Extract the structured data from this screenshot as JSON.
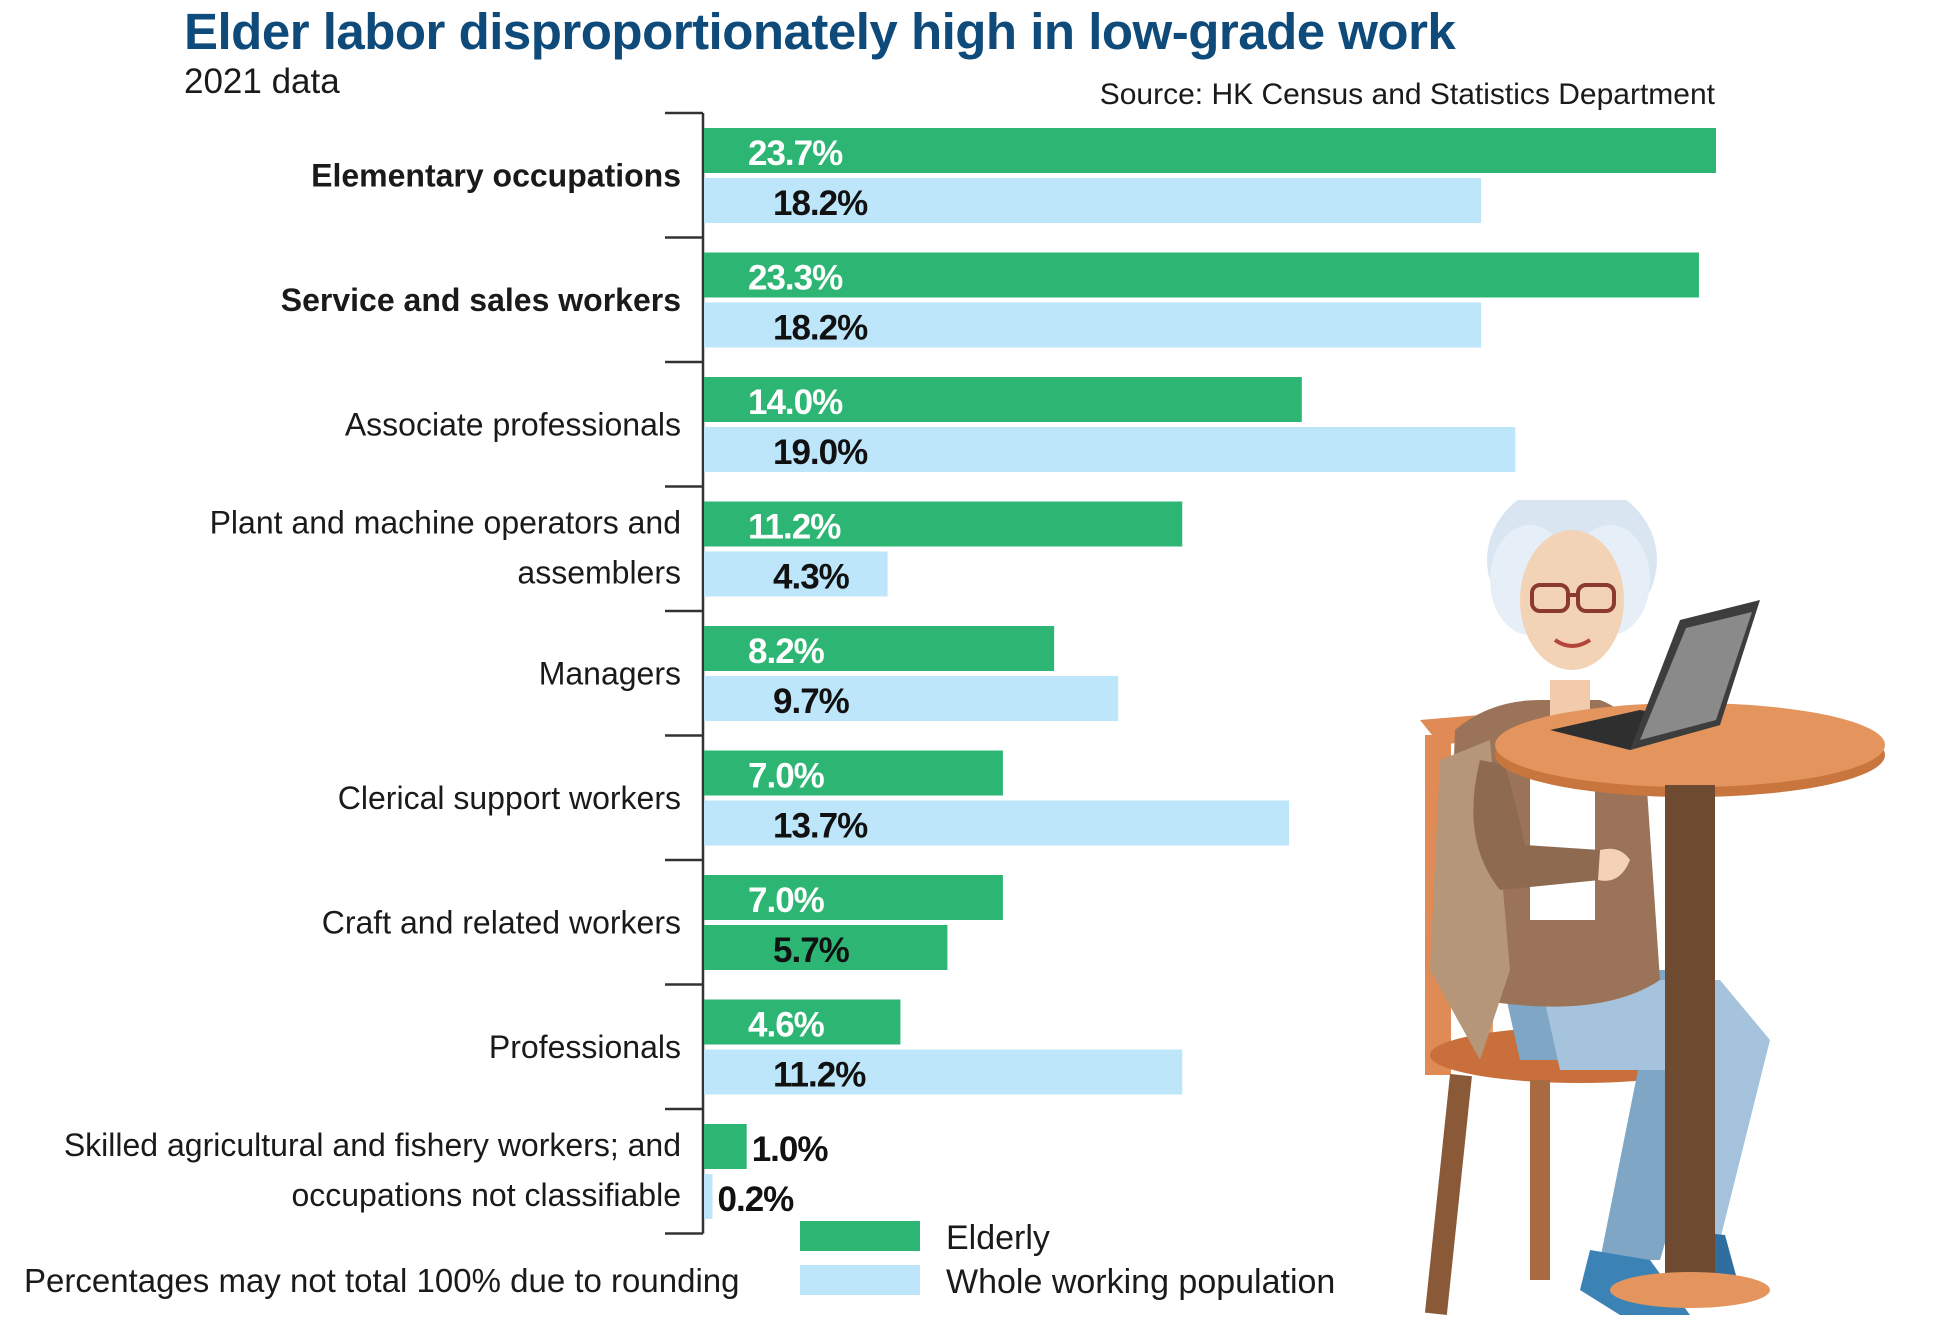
{
  "title": "Elder labor disproportionately high in low-grade work",
  "subtitle": "2021 data",
  "source": "Source: HK Census and Statistics Department",
  "footnote": "Percentages may not total 100% due to rounding",
  "colors": {
    "title": "#0e4a7a",
    "elderly": "#2db673",
    "whole_population": "#bde6fa",
    "axis": "#333333"
  },
  "chart_data": {
    "type": "bar",
    "orientation": "horizontal",
    "categories": [
      [
        "Elementary occupations"
      ],
      [
        "Service and sales workers"
      ],
      [
        "Associate professionals"
      ],
      [
        "Plant and machine operators and",
        "assemblers"
      ],
      [
        "Managers"
      ],
      [
        "Clerical support workers"
      ],
      [
        "Craft and related workers"
      ],
      [
        "Professionals"
      ],
      [
        "Skilled agricultural and fishery workers; and",
        "occupations not classifiable"
      ]
    ],
    "bold_categories": [
      0,
      1
    ],
    "series": [
      {
        "name": "Elderly",
        "color": "#2db673",
        "values": [
          23.7,
          23.3,
          14.0,
          11.2,
          8.2,
          7.0,
          7.0,
          4.6,
          1.0
        ],
        "labels": [
          "23.7%",
          "23.3%",
          "14.0%",
          "11.2%",
          "8.2%",
          "7.0%",
          "7.0%",
          "4.6%",
          "1.0%"
        ]
      },
      {
        "name": "Whole working population",
        "color": "#bde6fa",
        "values": [
          18.2,
          18.2,
          19.0,
          4.3,
          9.7,
          13.7,
          5.7,
          11.2,
          0.2
        ],
        "labels": [
          "18.2%",
          "18.2%",
          "19.0%",
          "4.3%",
          "9.7%",
          "13.7%",
          "5.7%",
          "11.2%",
          "0.2%"
        ]
      }
    ],
    "bar_color_overrides": [
      {
        "series": 1,
        "index": 6,
        "color": "#2db673"
      }
    ],
    "xlim": [
      0,
      23.7
    ],
    "grid": false,
    "legend_position": "bottom"
  }
}
